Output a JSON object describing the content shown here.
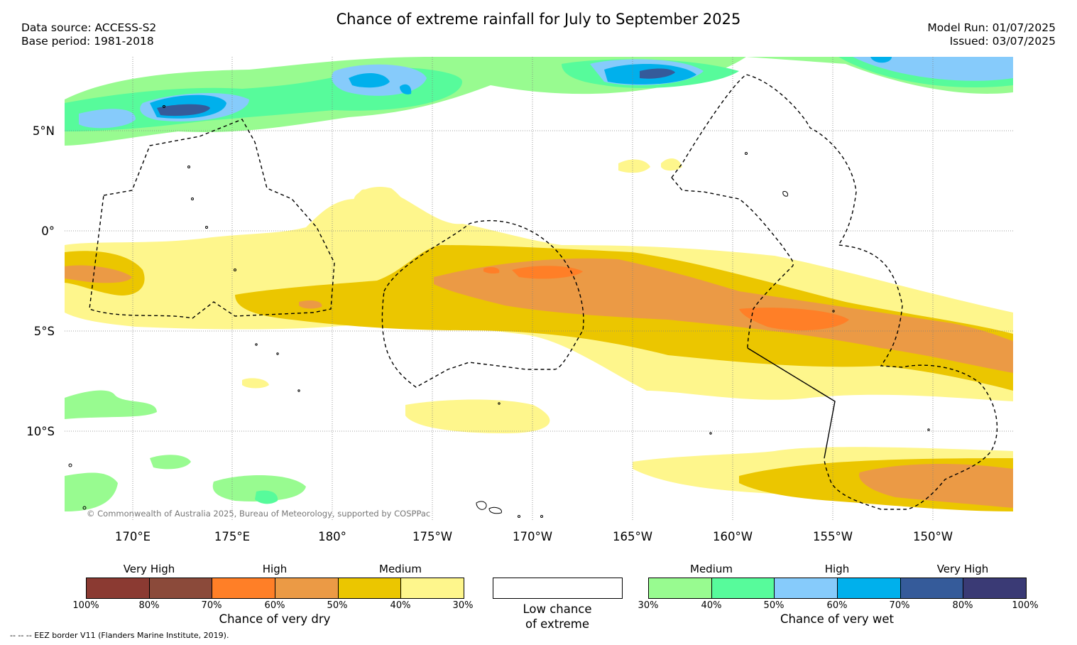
{
  "title": "Chance of extreme rainfall for July to September 2025",
  "data_source": "Data source: ACCESS-S2",
  "base_period": "Base period: 1981-2018",
  "model_run": "Model Run: 01/07/2025",
  "issued": "Issued: 03/07/2025",
  "latitudes": [
    "5°N",
    "0°",
    "5°S",
    "10°S"
  ],
  "longitudes": [
    "170°E",
    "175°E",
    "180°",
    "175°W",
    "170°W",
    "165°W",
    "160°W",
    "155°W",
    "150°W"
  ],
  "copyright": "© Commonwealth of Australia 2025, Bureau of Meteorology, supported by COSPPac",
  "dry_legend": {
    "categories": [
      "Very High",
      "High",
      "Medium"
    ],
    "colors": [
      "#8B3A32",
      "#8B4A3A",
      "#FF7F27",
      "#EB9A45",
      "#EBC600",
      "#FEF68C"
    ],
    "ticks": [
      "100%",
      "80%",
      "70%",
      "60%",
      "50%",
      "40%",
      "30%"
    ],
    "caption": "Chance of very dry"
  },
  "neutral_legend": {
    "caption_line1": "Low chance",
    "caption_line2": "of extreme"
  },
  "wet_legend": {
    "categories": [
      "Medium",
      "High",
      "Very High"
    ],
    "colors": [
      "#98FB90",
      "#57FB9B",
      "#86CBFB",
      "#00B0EC",
      "#355B9A",
      "#3A3A75"
    ],
    "ticks": [
      "30%",
      "40%",
      "50%",
      "60%",
      "70%",
      "80%",
      "100%"
    ],
    "caption": "Chance of very wet"
  },
  "footnote": "--  --  -- EEZ border V11 (Flanders Marine Institute, 2019)."
}
